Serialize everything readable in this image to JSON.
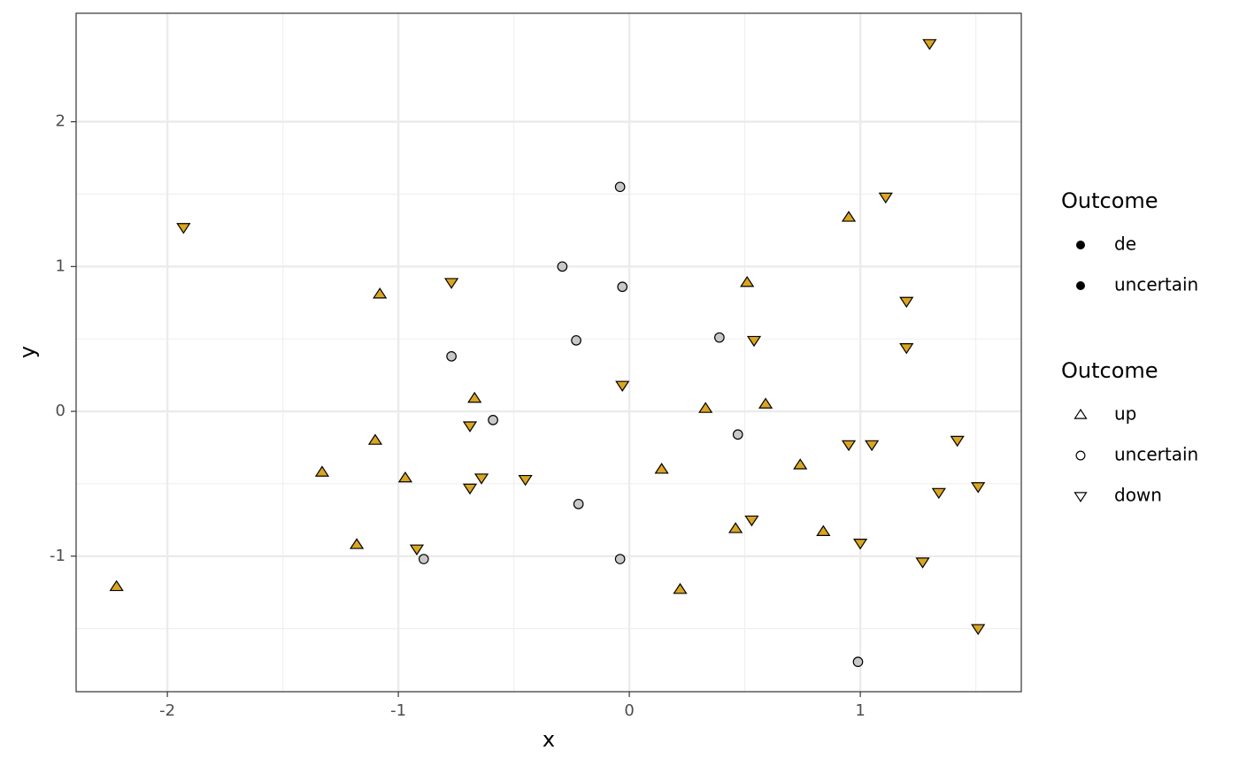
{
  "chart_data": {
    "type": "scatter",
    "x_label": "x",
    "y_label": "y",
    "xlim": [
      -2.395,
      1.697
    ],
    "ylim": [
      -1.936,
      2.749
    ],
    "xticks": [
      -2,
      -1,
      0,
      1
    ],
    "yticks": [
      -1,
      0,
      1,
      2
    ],
    "x_minor_grid": [
      -1.5,
      -0.5,
      0.5,
      1.5
    ],
    "y_minor_grid": [
      -1.5,
      -0.5,
      0.5,
      1.5
    ],
    "grid": true,
    "fill_legend": {
      "title": "Outcome",
      "labels": [
        "de",
        "uncertain"
      ],
      "color": "#000000"
    },
    "shape_legend_title": "Outcome",
    "series": [
      {
        "name": "up",
        "shape": "triangle-up",
        "color": "#DAA520",
        "x": [
          -2.22,
          -1.33,
          -1.18,
          -1.1,
          -1.08,
          -0.97,
          -0.67,
          0.14,
          0.22,
          0.33,
          0.46,
          0.51,
          0.59,
          0.74,
          0.84,
          0.95
        ],
        "y": [
          -1.21,
          -0.42,
          -0.92,
          -0.2,
          0.81,
          -0.46,
          0.09,
          -0.4,
          -1.23,
          0.02,
          -0.81,
          0.89,
          0.05,
          -0.37,
          -0.83,
          1.34
        ]
      },
      {
        "name": "uncertain",
        "shape": "circle",
        "color": "#C8C8C8",
        "x": [
          -0.04,
          -0.29,
          -0.03,
          -0.23,
          -0.77,
          -0.59,
          -0.22,
          -0.89,
          -0.04,
          0.39,
          0.47,
          0.99
        ],
        "y": [
          1.55,
          1.0,
          0.86,
          0.49,
          0.38,
          -0.06,
          -0.64,
          -1.02,
          -1.02,
          0.51,
          -0.16,
          -1.73
        ]
      },
      {
        "name": "down",
        "shape": "triangle-down",
        "color": "#DAA520",
        "x": [
          -1.93,
          -0.77,
          -0.69,
          -0.69,
          -0.64,
          -0.45,
          -0.92,
          -0.03,
          0.54,
          0.53,
          0.95,
          1.05,
          1.11,
          1.0,
          1.2,
          1.2,
          1.3,
          1.27,
          1.42,
          1.34,
          1.51,
          1.51
        ],
        "y": [
          1.27,
          0.89,
          -0.1,
          -0.53,
          -0.46,
          -0.47,
          -0.95,
          0.18,
          0.49,
          -0.75,
          -0.23,
          -0.23,
          1.48,
          -0.91,
          0.76,
          0.44,
          2.54,
          -1.04,
          -0.2,
          -0.56,
          -0.52,
          -1.5
        ]
      }
    ]
  }
}
